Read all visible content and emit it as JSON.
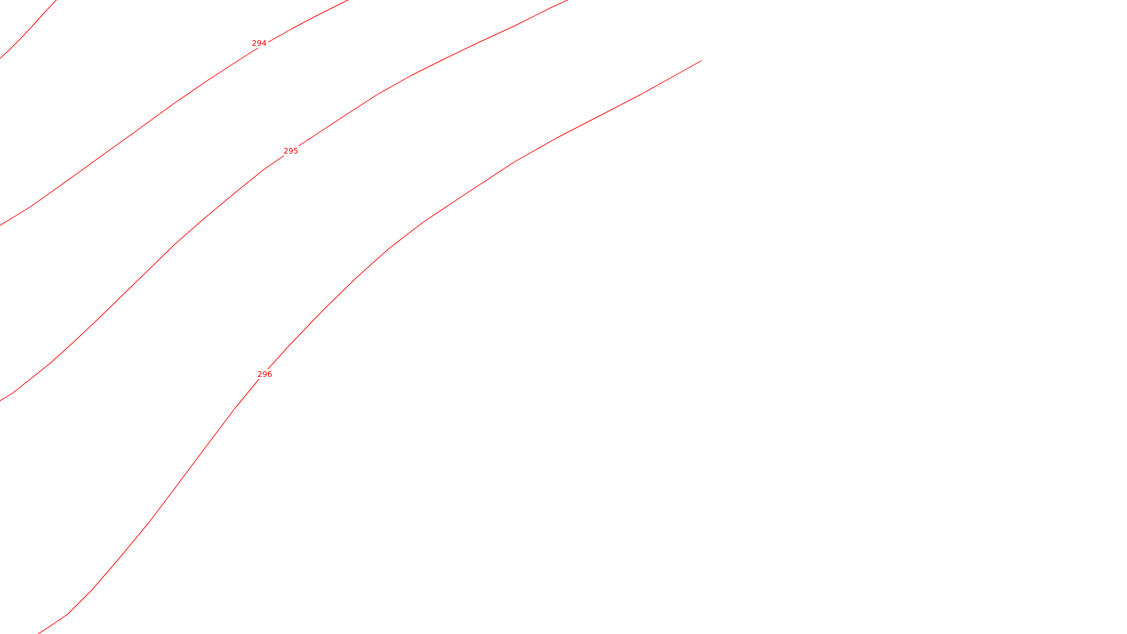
{
  "map": {
    "line_color": "#ff0000",
    "background_color": "#ffffff",
    "contours": [
      {
        "elevation": "294"
      },
      {
        "elevation": "295"
      },
      {
        "elevation": "296"
      }
    ]
  }
}
